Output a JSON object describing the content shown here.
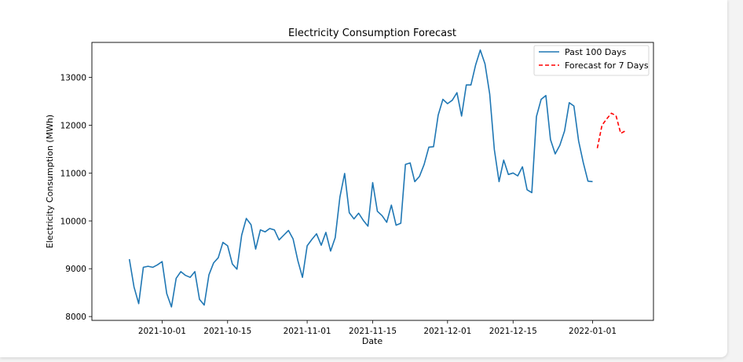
{
  "chart_data": {
    "type": "line",
    "title": "Electricity Consumption Forecast",
    "xlabel": "Date",
    "ylabel": "Electricity Consumption (MWh)",
    "xlim": [
      "2021-09-16",
      "2022-01-14"
    ],
    "ylim": [
      7920,
      13730
    ],
    "x_ticks": [
      "2021-10-01",
      "2021-10-15",
      "2021-11-01",
      "2021-11-15",
      "2021-12-01",
      "2021-12-15",
      "2022-01-01"
    ],
    "y_ticks": [
      8000,
      9000,
      10000,
      11000,
      12000,
      13000
    ],
    "grid": false,
    "legend_position": "top-right",
    "series": [
      {
        "name": "Past 100 Days",
        "color": "#1f77b4",
        "style": "solid",
        "start_date": "2021-09-24",
        "values": [
          9200,
          8620,
          8270,
          9030,
          9050,
          9030,
          9080,
          9150,
          8480,
          8200,
          8800,
          8940,
          8860,
          8820,
          8940,
          8360,
          8240,
          8870,
          9120,
          9230,
          9550,
          9480,
          9100,
          8990,
          9700,
          10050,
          9920,
          9410,
          9810,
          9770,
          9840,
          9810,
          9600,
          9700,
          9800,
          9620,
          9170,
          8820,
          9480,
          9610,
          9730,
          9490,
          9760,
          9370,
          9650,
          10500,
          10990,
          10170,
          10040,
          10160,
          10010,
          9890,
          10800,
          10200,
          10110,
          9970,
          10330,
          9910,
          9950,
          11180,
          11210,
          10820,
          10930,
          11180,
          11540,
          11550,
          12210,
          12540,
          12450,
          12520,
          12680,
          12190,
          12840,
          12840,
          13260,
          13570,
          13280,
          12650,
          11490,
          10820,
          11270,
          10970,
          11000,
          10940,
          11130,
          10650,
          10590,
          12180,
          12540,
          12620,
          11700,
          11400,
          11580,
          11880,
          12470,
          12400,
          11670,
          11220,
          10830,
          10820
        ]
      },
      {
        "name": "Forecast for 7 Days",
        "color": "#ff0000",
        "style": "dashed",
        "start_date": "2022-01-02",
        "values": [
          11520,
          12000,
          12130,
          12250,
          12200,
          11830,
          11880
        ]
      }
    ]
  }
}
